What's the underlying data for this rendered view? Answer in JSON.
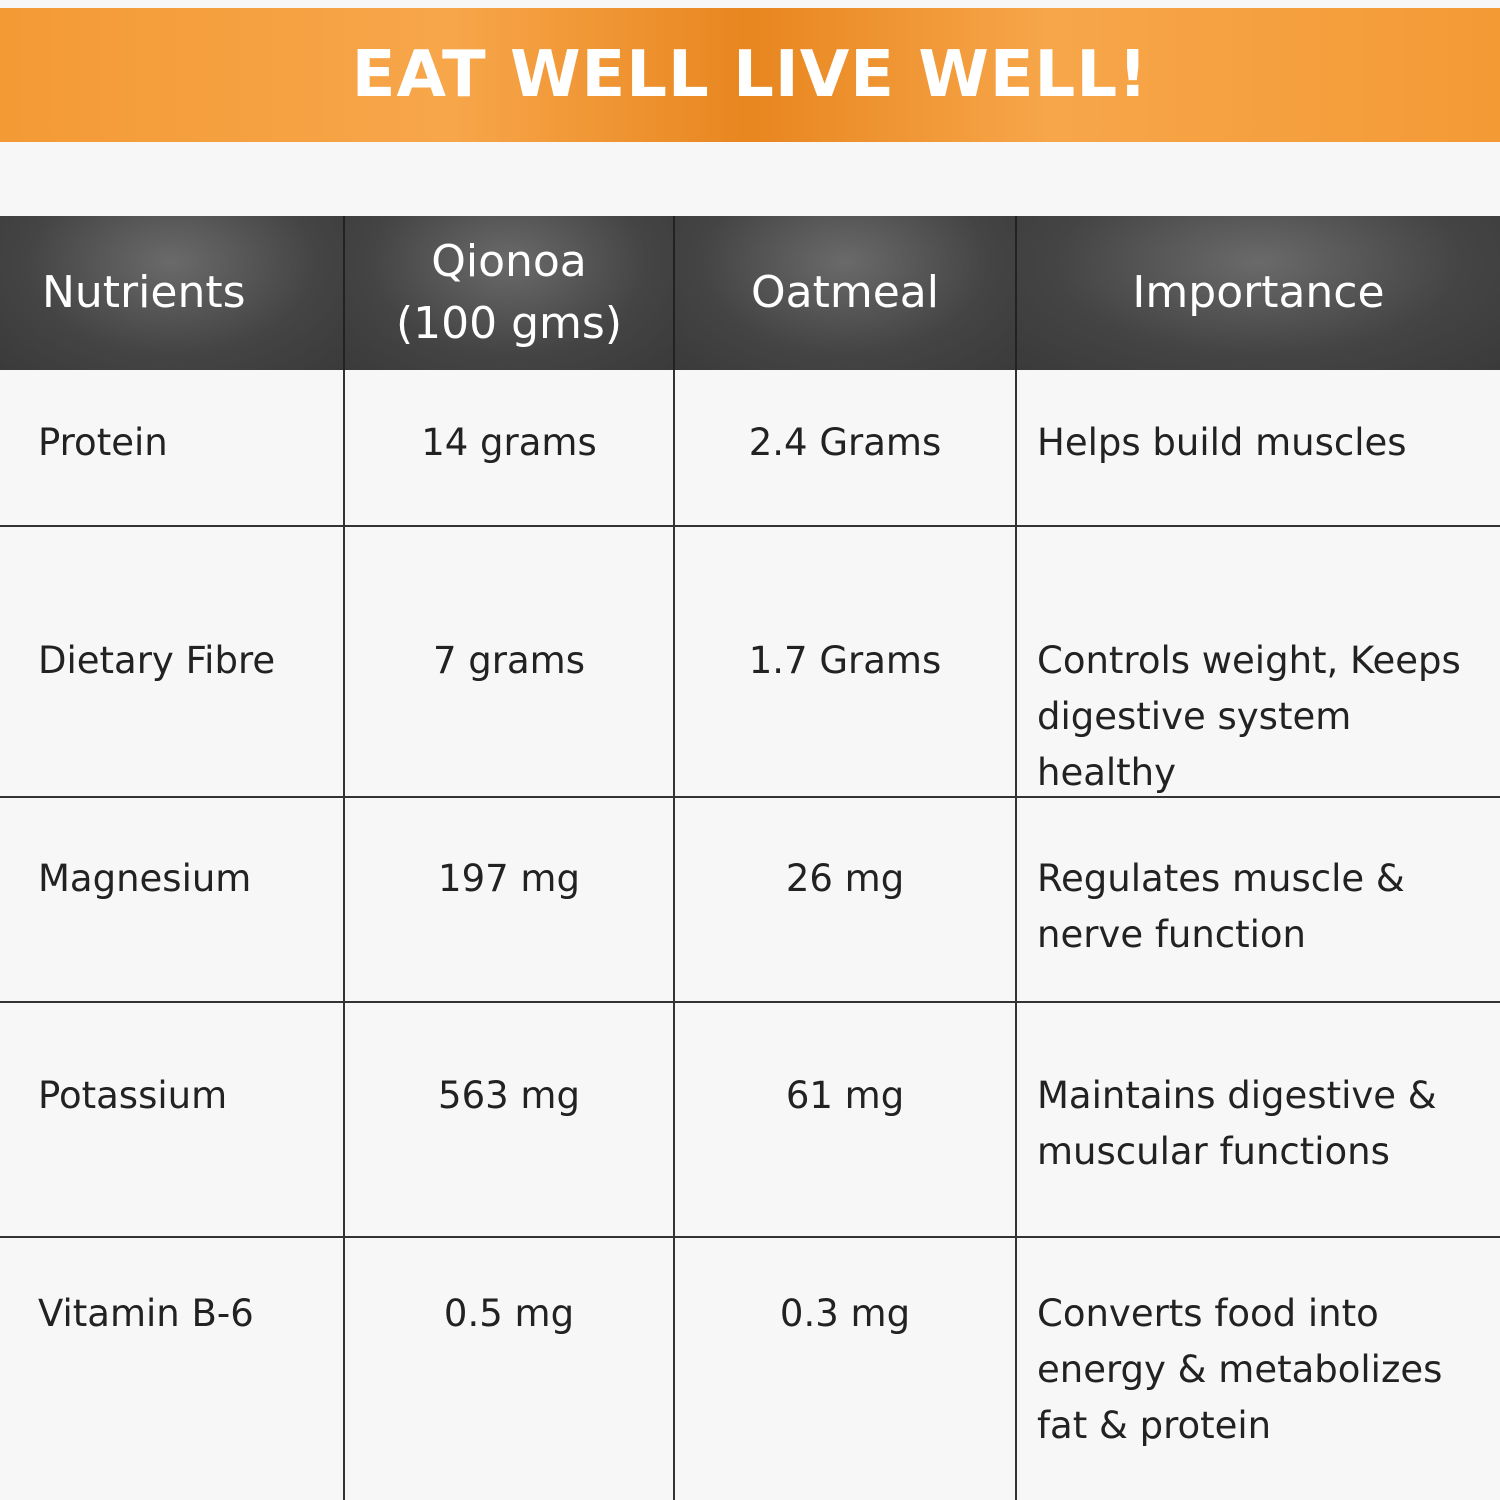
{
  "header": {
    "title": "EAT WELL LIVE WELL!"
  },
  "table": {
    "columns": [
      "Nutrients",
      "Qionoa (100 gms)",
      "Oatmeal",
      "Importance"
    ],
    "rows": [
      [
        "Protein",
        "14 grams",
        "2.4 Grams",
        "Helps build muscles"
      ],
      [
        "Dietary Fibre",
        "7 grams",
        "1.7 Grams",
        "Controls weight, Keeps digestive system healthy"
      ],
      [
        "Magnesium",
        "197 mg",
        "26 mg",
        "Regulates muscle & nerve function"
      ],
      [
        "Potassium",
        "563 mg",
        "61 mg",
        "Maintains digestive & muscular functions"
      ],
      [
        "Vitamin B-6",
        "0.5 mg",
        "0.3 mg",
        "Converts food into energy & metabolizes fat & protein"
      ]
    ]
  }
}
